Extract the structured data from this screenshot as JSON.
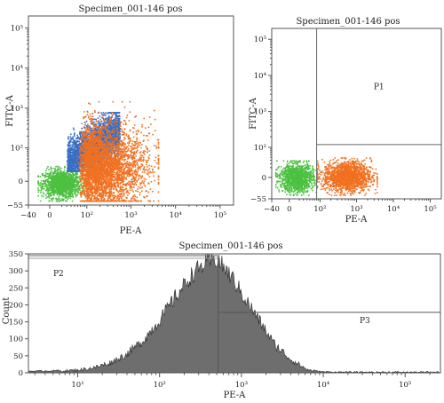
{
  "colors": {
    "blue": "#3a6fc4",
    "orange": "#f07020",
    "green": "#4cc040",
    "histogram_fill": "#6e6e6e",
    "axis": "#555555"
  },
  "chart_data": [
    {
      "type": "scatter",
      "title": "Specimen_001-146 pos",
      "xlabel": "PE-A",
      "ylabel": "FITC-A",
      "xscale": "biexponential",
      "yscale": "biexponential",
      "xlim": [
        -40,
        200000
      ],
      "ylim": [
        -55,
        200000
      ],
      "x_ticks": [
        "−40",
        "0",
        "10²",
        "10³",
        "10⁴",
        "10⁵"
      ],
      "y_ticks": [
        "−55",
        "0",
        "10²",
        "10³",
        "10⁴",
        "10⁵"
      ],
      "x_tick_values": [
        -40,
        0,
        100,
        1000,
        10000,
        100000
      ],
      "y_tick_values": [
        -55,
        0,
        100,
        1000,
        10000,
        100000
      ],
      "series": [
        {
          "color": "green",
          "x_range": [
            -20,
            90
          ],
          "y_range": [
            -40,
            30
          ]
        },
        {
          "color": "blue",
          "x_range": [
            30,
            550
          ],
          "y_range": [
            20,
            800
          ]
        },
        {
          "color": "orange",
          "x_range": [
            60,
            4000
          ],
          "y_range": [
            -40,
            1500
          ]
        }
      ]
    },
    {
      "type": "scatter",
      "title": "Specimen_001-146 pos",
      "xlabel": "PE-A",
      "ylabel": "FITC-A",
      "xscale": "biexponential",
      "yscale": "biexponential",
      "xlim": [
        -40,
        200000
      ],
      "ylim": [
        -55,
        200000
      ],
      "x_ticks": [
        "−40",
        "0",
        "10²",
        "10³",
        "10⁴",
        "10⁵"
      ],
      "y_ticks": [
        "−55",
        "0",
        "10²",
        "10³",
        "10⁴",
        "10⁵"
      ],
      "x_tick_values": [
        -40,
        0,
        100,
        1000,
        10000,
        100000
      ],
      "y_tick_values": [
        -55,
        0,
        100,
        1000,
        10000,
        100000
      ],
      "gates": [
        {
          "label": "P1",
          "x_min": 80,
          "x_max": 200000,
          "y_min": 120,
          "y_max": 200000
        }
      ],
      "series": [
        {
          "color": "green",
          "x_range": [
            -30,
            80
          ],
          "y_range": [
            -40,
            40
          ]
        },
        {
          "color": "orange",
          "x_range": [
            80,
            3500
          ],
          "y_range": [
            -40,
            50
          ]
        }
      ]
    },
    {
      "type": "histogram",
      "title": "Specimen_001-146 pos",
      "xlabel": "PE-A",
      "ylabel": "Count",
      "xscale": "log",
      "xlim": [
        2.5,
        270000
      ],
      "ylim": [
        0,
        350
      ],
      "x_ticks": [
        "10¹",
        "10²",
        "10³",
        "10⁴",
        "10⁵"
      ],
      "x_tick_values": [
        10,
        100,
        1000,
        10000,
        100000
      ],
      "y_ticks": [
        "0",
        "50",
        "100",
        "150",
        "200",
        "250",
        "300",
        "350"
      ],
      "y_tick_values": [
        0,
        50,
        100,
        150,
        200,
        250,
        300,
        350
      ],
      "gates": [
        {
          "label": "P2",
          "x_min": 2.5,
          "x_max": 520,
          "y_level": 350
        },
        {
          "label": "P3",
          "x_min": 520,
          "x_max": 270000,
          "y_level": 178
        }
      ],
      "envelope": {
        "log10_x": [
          0.4,
          0.7,
          1.0,
          1.2,
          1.4,
          1.6,
          1.8,
          2.0,
          2.2,
          2.4,
          2.55,
          2.7,
          2.8,
          2.9,
          3.0,
          3.2,
          3.4,
          3.6,
          3.8,
          3.9,
          4.0,
          4.3,
          5.4
        ],
        "counts": [
          3,
          4,
          8,
          15,
          30,
          55,
          95,
          155,
          225,
          290,
          320,
          335,
          305,
          275,
          235,
          160,
          85,
          40,
          10,
          4,
          1,
          0,
          0
        ]
      }
    }
  ]
}
